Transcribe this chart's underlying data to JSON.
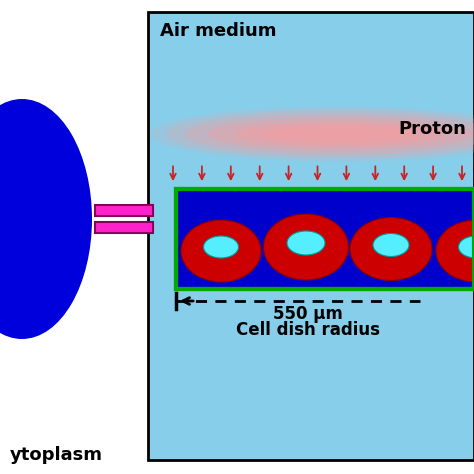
{
  "bg_color": "#ffffff",
  "air_bg": "#87ceeb",
  "cell_dish_bg": "#0000cc",
  "cell_dish_border": "#00aa00",
  "arrow_color": "#cc2222",
  "cell_red": "#cc0000",
  "nucleus_cyan": "#55eeff",
  "ellipse_blue": "#0000dd",
  "equal_sign_color": "#ff22cc",
  "equal_sign_border": "#880055",
  "text_color": "#000000",
  "air_medium_text": "Air medium",
  "proton_text": "Proton",
  "dim_text": "550 μm",
  "radius_text": "Cell dish radius",
  "cytoplasm_text": "ytoplasm",
  "fig_width": 4.74,
  "fig_height": 4.74,
  "dpi": 100
}
